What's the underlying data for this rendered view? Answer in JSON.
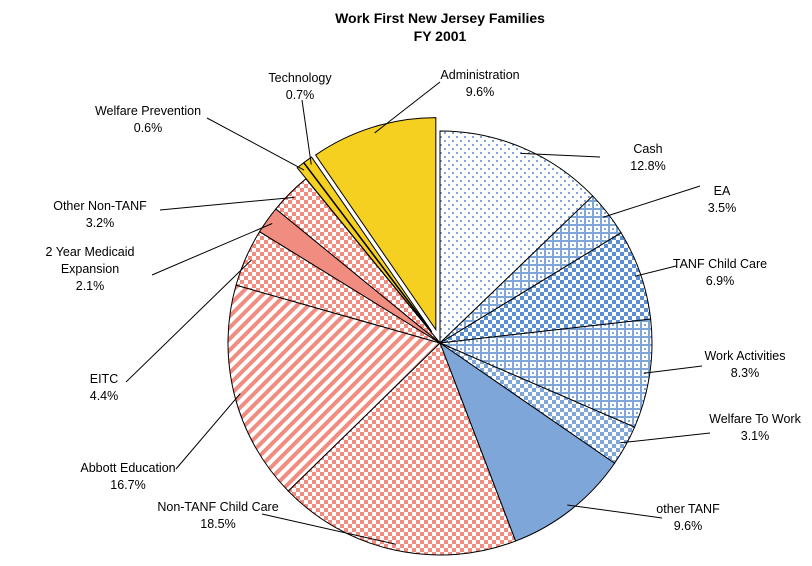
{
  "chart_data": {
    "type": "pie",
    "title": "Work First New Jersey Families",
    "subtitle": "FY 2001",
    "categories": [
      "Cash",
      "EA",
      "TANF Child Care",
      "Work Activities",
      "Welfare To Work",
      "other TANF",
      "Non-TANF Child Care",
      "Abbott Education",
      "EITC",
      "2 Year Medicaid Expansion",
      "Other Non-TANF",
      "Welfare Prevention",
      "Technology",
      "Administration"
    ],
    "values": [
      12.8,
      3.5,
      6.9,
      8.3,
      3.1,
      9.6,
      18.5,
      16.7,
      4.4,
      2.1,
      3.2,
      0.6,
      0.7,
      9.6
    ],
    "value_labels": [
      "12.8%",
      "3.5%",
      "6.9%",
      "8.3%",
      "3.1%",
      "9.6%",
      "18.5%",
      "16.7%",
      "4.4%",
      "2.1%",
      "3.2%",
      "0.6%",
      "0.7%",
      "9.6%"
    ],
    "colors": [
      "#7ea6d8",
      "#7ea6d8",
      "#5b8fd0",
      "#7ea6d8",
      "#7ea6d8",
      "#7ea6d8",
      "#f08c80",
      "#f08c80",
      "#f08c80",
      "#f08c80",
      "#f08c80",
      "#f5d020",
      "#f5d020",
      "#f5d020"
    ]
  }
}
